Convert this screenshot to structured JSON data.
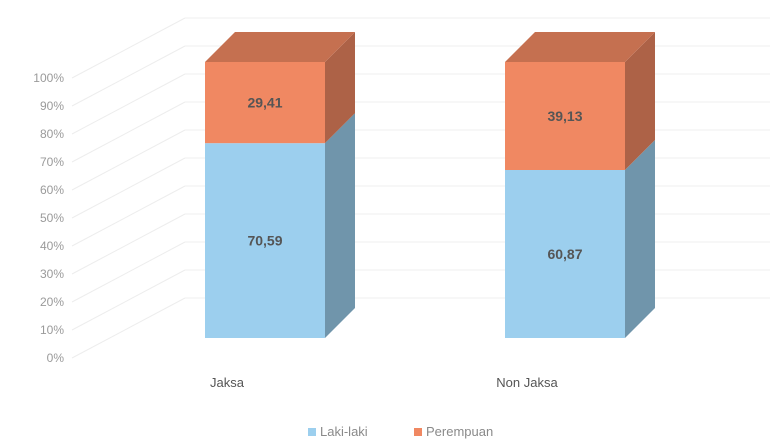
{
  "chart_data": {
    "type": "bar",
    "stacked": true,
    "style": "3d-stacked-column-100-percent",
    "categories": [
      "Jaksa",
      "Non Jaksa"
    ],
    "series": [
      {
        "name": "Laki-laki",
        "values": [
          70.59,
          60.87
        ],
        "labels": [
          "70,59",
          "60,87"
        ],
        "color": "#9ccfee"
      },
      {
        "name": "Perempuan",
        "values": [
          29.41,
          39.13
        ],
        "labels": [
          "29,41",
          "39,13"
        ],
        "color": "#f08862"
      }
    ],
    "y_ticks": [
      "0%",
      "10%",
      "20%",
      "30%",
      "40%",
      "50%",
      "60%",
      "70%",
      "80%",
      "90%",
      "100%"
    ],
    "ylim": [
      0,
      100
    ],
    "grid": true,
    "legend_position": "bottom"
  }
}
